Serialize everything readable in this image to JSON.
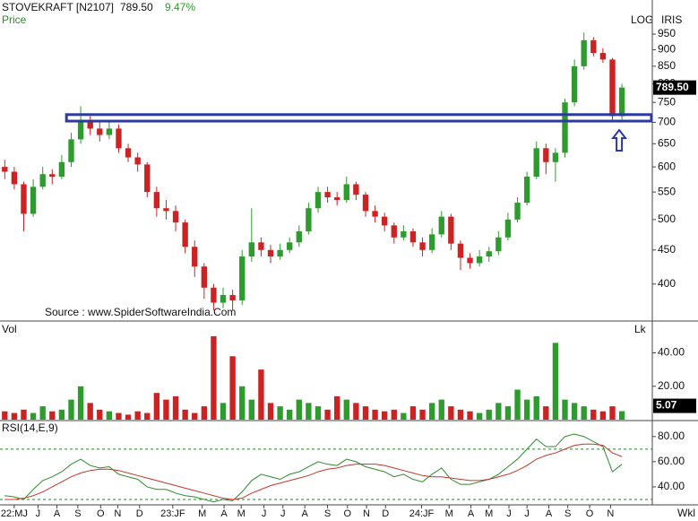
{
  "header": {
    "symbol": "STOVEKRAFT [N2107]",
    "price": "789.50",
    "change": "9.47%"
  },
  "chart_data": [
    {
      "type": "candlestick",
      "ylabel": "Price",
      "scale_label": "LOG",
      "indicator_label": "IRIS",
      "source": "Source : www.SpiderSoftwareIndia.Com",
      "log": true,
      "up_color": "#2e9b2e",
      "down_color": "#cc2222",
      "open": [
        600,
        590,
        565,
        510,
        560,
        585,
        580,
        610,
        660,
        700,
        685,
        670,
        685,
        640,
        620,
        605,
        550,
        520,
        515,
        495,
        455,
        425,
        395,
        375,
        385,
        378,
        440,
        462,
        450,
        440,
        450,
        462,
        480,
        520,
        550,
        540,
        535,
        565,
        545,
        515,
        505,
        490,
        470,
        480,
        462,
        450,
        475,
        505,
        460,
        438,
        430,
        440,
        448,
        470,
        500,
        530,
        580,
        640,
        610,
        630,
        750,
        850,
        930,
        890,
        870,
        715
      ],
      "high": [
        615,
        600,
        570,
        575,
        600,
        595,
        625,
        675,
        740,
        715,
        700,
        700,
        695,
        650,
        630,
        610,
        560,
        535,
        525,
        500,
        465,
        430,
        400,
        395,
        392,
        450,
        520,
        470,
        458,
        460,
        470,
        490,
        530,
        560,
        560,
        550,
        580,
        570,
        550,
        525,
        512,
        495,
        490,
        485,
        470,
        485,
        515,
        510,
        465,
        445,
        450,
        455,
        480,
        512,
        540,
        590,
        655,
        650,
        640,
        760,
        870,
        955,
        940,
        905,
        875,
        800
      ],
      "low": [
        575,
        555,
        480,
        505,
        555,
        565,
        575,
        600,
        650,
        670,
        655,
        660,
        630,
        610,
        590,
        540,
        505,
        500,
        480,
        445,
        410,
        380,
        365,
        368,
        365,
        372,
        432,
        440,
        430,
        435,
        445,
        455,
        475,
        512,
        530,
        525,
        530,
        535,
        505,
        495,
        480,
        460,
        465,
        455,
        440,
        445,
        470,
        450,
        420,
        422,
        425,
        432,
        442,
        465,
        495,
        525,
        575,
        585,
        570,
        620,
        740,
        840,
        880,
        860,
        700,
        705
      ],
      "close": [
        590,
        565,
        510,
        560,
        585,
        580,
        610,
        660,
        700,
        685,
        670,
        685,
        640,
        620,
        605,
        550,
        520,
        515,
        495,
        455,
        425,
        395,
        375,
        385,
        378,
        440,
        462,
        450,
        440,
        450,
        462,
        480,
        520,
        550,
        540,
        535,
        565,
        545,
        515,
        505,
        490,
        470,
        480,
        462,
        450,
        475,
        505,
        460,
        438,
        430,
        440,
        448,
        470,
        500,
        530,
        580,
        640,
        610,
        630,
        750,
        850,
        930,
        890,
        870,
        715,
        789.5
      ],
      "last_label": "789.50",
      "zone": {
        "low": 703,
        "high": 719,
        "start": 6.5,
        "color": "#2b3a9e"
      },
      "ylim": [
        353,
        1069
      ],
      "yticks": [
        400,
        450,
        500,
        550,
        600,
        650,
        700,
        750,
        800,
        850,
        900,
        950
      ],
      "xlim": [
        -0.5,
        68.2
      ],
      "xlabel": "Wkl",
      "xticks": [
        {
          "value": 1,
          "label": "22:MJ"
        },
        {
          "value": 3.5,
          "label": "J"
        },
        {
          "value": 5.5,
          "label": "A"
        },
        {
          "value": 7.7,
          "label": "S"
        },
        {
          "value": 10.1,
          "label": "O"
        },
        {
          "value": 11.9,
          "label": "N"
        },
        {
          "value": 14.2,
          "label": "D"
        },
        {
          "value": 17.7,
          "label": "23:JF"
        },
        {
          "value": 20.8,
          "label": "M"
        },
        {
          "value": 23.1,
          "label": "A"
        },
        {
          "value": 24.9,
          "label": "M"
        },
        {
          "value": 27.3,
          "label": "J"
        },
        {
          "value": 29.3,
          "label": "J"
        },
        {
          "value": 31.6,
          "label": "A"
        },
        {
          "value": 34,
          "label": "S"
        },
        {
          "value": 36.1,
          "label": "O"
        },
        {
          "value": 38.1,
          "label": "N"
        },
        {
          "value": 40.1,
          "label": "D"
        },
        {
          "value": 43.9,
          "label": "24:JF"
        },
        {
          "value": 46.8,
          "label": "M"
        },
        {
          "value": 49.1,
          "label": "A"
        },
        {
          "value": 51,
          "label": "M"
        },
        {
          "value": 53.1,
          "label": "J"
        },
        {
          "value": 55,
          "label": "J"
        },
        {
          "value": 57.3,
          "label": "A"
        },
        {
          "value": 59.3,
          "label": "S"
        },
        {
          "value": 61.6,
          "label": "O"
        },
        {
          "value": 63.8,
          "label": "N"
        }
      ]
    },
    {
      "type": "bar",
      "ylabel": "Vol",
      "unit_label": "Lk",
      "values": [
        5,
        4,
        6,
        4,
        8,
        5,
        6,
        12,
        20,
        10,
        6,
        5,
        4,
        3,
        5,
        4,
        16,
        12,
        14,
        6,
        4,
        8,
        50,
        10,
        38,
        20,
        12,
        30,
        10,
        8,
        6,
        12,
        10,
        8,
        6,
        14,
        12,
        10,
        8,
        6,
        5,
        6,
        4,
        8,
        6,
        10,
        12,
        8,
        6,
        5,
        4,
        6,
        10,
        8,
        18,
        12,
        14,
        8,
        46,
        12,
        10,
        8,
        6,
        5,
        8,
        5.07
      ],
      "ylim": [
        0,
        58
      ],
      "yticks": [
        {
          "value": 20,
          "label": "20.00"
        },
        {
          "value": 40,
          "label": "40.00"
        }
      ]
    },
    {
      "type": "line",
      "title": "RSI(14,E,9)",
      "series": [
        {
          "color": "#2e8b2e",
          "values": [
            33,
            32,
            30,
            38,
            45,
            48,
            52,
            58,
            62,
            57,
            55,
            56,
            50,
            48,
            46,
            40,
            38,
            38,
            35,
            33,
            32,
            30,
            28,
            30,
            29,
            36,
            45,
            50,
            48,
            46,
            50,
            52,
            56,
            60,
            58,
            57,
            62,
            60,
            56,
            54,
            52,
            48,
            50,
            46,
            44,
            50,
            55,
            46,
            42,
            42,
            44,
            46,
            50,
            56,
            62,
            70,
            78,
            72,
            72,
            80,
            82,
            80,
            76,
            72,
            52,
            58
          ]
        },
        {
          "color": "#c0392b",
          "values": [
            30,
            30,
            31,
            33,
            36,
            40,
            44,
            48,
            51,
            53,
            54,
            54,
            53,
            51,
            49,
            47,
            45,
            43,
            41,
            39,
            37,
            35,
            33,
            31,
            30,
            31,
            35,
            38,
            41,
            43,
            45,
            47,
            49,
            52,
            54,
            55,
            57,
            58,
            58,
            58,
            57,
            55,
            53,
            51,
            49,
            48,
            48,
            47,
            46,
            45,
            45,
            46,
            48,
            50,
            53,
            57,
            62,
            65,
            67,
            70,
            73,
            74,
            74,
            73,
            67,
            64
          ]
        }
      ],
      "ref_lines": [
        70,
        30
      ],
      "ref_color": "#2e7d32",
      "ylim": [
        26.4,
        92
      ],
      "yticks": [
        {
          "value": 80,
          "label": "80.00"
        },
        {
          "value": 60,
          "label": "60.00"
        },
        {
          "value": 40,
          "label": "40.00"
        }
      ]
    }
  ]
}
